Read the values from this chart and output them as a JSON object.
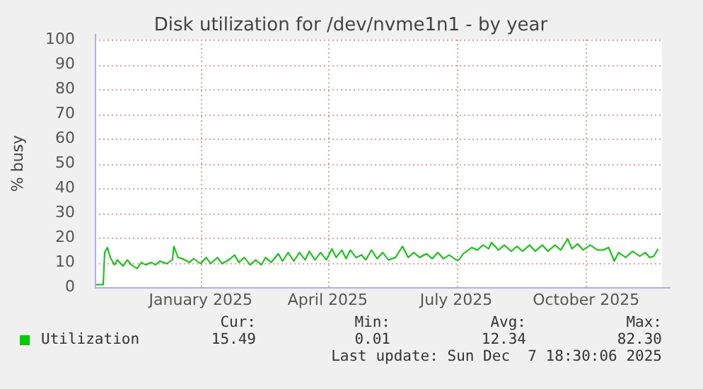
{
  "chart_data": {
    "type": "line",
    "title": "Disk utilization for /dev/nvme1n1 - by year",
    "ylabel": "% busy",
    "xlim": [
      "2024-11-01",
      "2025-12-07T18:30"
    ],
    "xticks": [
      {
        "value": "2025-01-15",
        "label": "January 2025"
      },
      {
        "value": "2025-04-15",
        "label": "April 2025"
      },
      {
        "value": "2025-07-15",
        "label": "July 2025"
      },
      {
        "value": "2025-10-15",
        "label": "October 2025"
      }
    ],
    "ylim": [
      0,
      100
    ],
    "yticks": [
      0,
      10,
      20,
      30,
      40,
      50,
      60,
      70,
      80,
      90,
      100
    ],
    "grid": true,
    "legend": "bottom",
    "x": [
      "2024-11-01",
      "2024-11-07",
      "2024-11-08",
      "2024-11-10",
      "2024-11-12",
      "2024-11-15",
      "2024-11-17",
      "2024-11-21",
      "2024-11-24",
      "2024-11-27",
      "2024-12-01",
      "2024-12-04",
      "2024-12-07",
      "2024-12-11",
      "2024-12-14",
      "2024-12-17",
      "2024-12-22",
      "2024-12-26",
      "2024-12-27",
      "2024-12-30",
      "2025-01-02",
      "2025-01-07",
      "2025-01-10",
      "2025-01-15",
      "2025-01-19",
      "2025-01-22",
      "2025-01-27",
      "2025-01-30",
      "2025-02-04",
      "2025-02-08",
      "2025-02-11",
      "2025-02-15",
      "2025-02-19",
      "2025-02-23",
      "2025-02-27",
      "2025-03-02",
      "2025-03-06",
      "2025-03-11",
      "2025-03-14",
      "2025-03-18",
      "2025-03-22",
      "2025-03-26",
      "2025-03-30",
      "2025-04-02",
      "2025-04-06",
      "2025-04-10",
      "2025-04-14",
      "2025-04-18",
      "2025-04-21",
      "2025-04-25",
      "2025-04-28",
      "2025-05-01",
      "2025-05-05",
      "2025-05-09",
      "2025-05-12",
      "2025-05-16",
      "2025-05-20",
      "2025-05-24",
      "2025-05-28",
      "2025-06-02",
      "2025-06-07",
      "2025-06-11",
      "2025-06-15",
      "2025-06-19",
      "2025-06-24",
      "2025-06-28",
      "2025-07-02",
      "2025-07-06",
      "2025-07-10",
      "2025-07-15",
      "2025-07-17",
      "2025-07-20",
      "2025-07-26",
      "2025-07-30",
      "2025-08-03",
      "2025-08-07",
      "2025-08-09",
      "2025-08-14",
      "2025-08-18",
      "2025-08-23",
      "2025-08-27",
      "2025-08-31",
      "2025-09-05",
      "2025-09-09",
      "2025-09-14",
      "2025-09-18",
      "2025-09-23",
      "2025-09-27",
      "2025-10-02",
      "2025-10-05",
      "2025-10-09",
      "2025-10-13",
      "2025-10-18",
      "2025-10-23",
      "2025-10-27",
      "2025-10-31",
      "2025-11-04",
      "2025-11-07",
      "2025-11-12",
      "2025-11-17",
      "2025-11-22",
      "2025-11-26",
      "2025-11-29",
      "2025-12-02",
      "2025-12-05"
    ],
    "series": [
      {
        "name": "Utilization",
        "color": "#00cc00",
        "values": [
          1,
          1,
          14,
          16,
          12,
          9,
          11,
          8.5,
          11,
          9,
          7.5,
          10,
          9,
          10,
          9,
          10.5,
          9.5,
          11,
          16.5,
          12,
          11.5,
          10,
          11.5,
          9.5,
          12,
          9.5,
          12,
          9.5,
          11,
          13,
          10,
          12,
          9,
          11,
          9,
          12,
          10,
          13.5,
          10.5,
          14,
          10.5,
          14,
          11,
          14.5,
          11,
          14,
          11,
          15.5,
          12,
          15,
          11.5,
          15,
          12,
          13,
          11,
          15,
          11.5,
          14,
          11,
          12,
          16.5,
          12,
          14,
          12,
          13.5,
          11.5,
          14,
          11.5,
          13,
          11,
          11,
          13.5,
          16,
          15,
          17,
          15.5,
          18,
          15,
          17,
          14.5,
          16.5,
          14.5,
          17,
          14.5,
          17,
          14.5,
          17,
          15,
          19.5,
          15.5,
          17.5,
          15,
          17,
          15,
          15,
          16,
          10.5,
          14,
          12,
          14.5,
          12.5,
          14,
          12,
          12.5,
          15.5
        ]
      }
    ],
    "annotations": [
      "Cur:",
      "Min:",
      "Avg:",
      "Max:",
      "15.49",
      "0.01",
      "12.34",
      "82.30",
      "Last update: Sun Dec  7 18:30:06 2025"
    ]
  }
}
